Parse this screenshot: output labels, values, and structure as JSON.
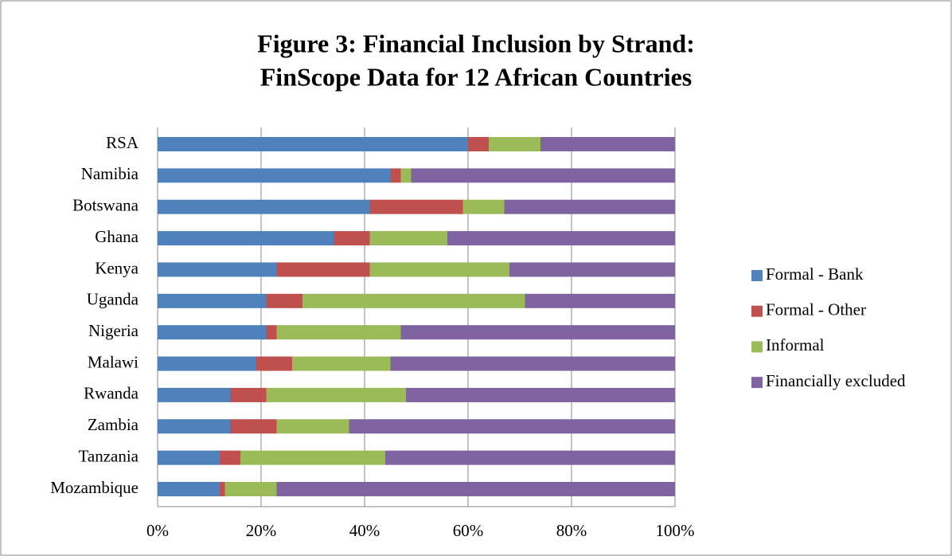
{
  "chart_data": {
    "type": "stacked-bar-horizontal",
    "title": [
      "Figure 3: Financial Inclusion by Strand:",
      "FinScope Data for 12 African Countries"
    ],
    "categories": [
      "RSA",
      "Namibia",
      "Botswana",
      "Ghana",
      "Kenya",
      "Uganda",
      "Nigeria",
      "Malawi",
      "Rwanda",
      "Zambia",
      "Tanzania",
      "Mozambique"
    ],
    "series": [
      {
        "name": "Formal - Bank",
        "color": "#4f81bd",
        "values": [
          60,
          45,
          41,
          34,
          23,
          21,
          21,
          19,
          14,
          14,
          12,
          12
        ]
      },
      {
        "name": "Formal - Other",
        "color": "#c0504d",
        "values": [
          4,
          2,
          18,
          7,
          18,
          7,
          2,
          7,
          7,
          9,
          4,
          1
        ]
      },
      {
        "name": "Informal",
        "color": "#9bbb59",
        "values": [
          10,
          2,
          8,
          15,
          27,
          43,
          24,
          19,
          27,
          14,
          28,
          10
        ]
      },
      {
        "name": "Financially excluded",
        "color": "#8064a2",
        "values": [
          26,
          51,
          33,
          44,
          32,
          29,
          53,
          55,
          52,
          63,
          56,
          77
        ]
      }
    ],
    "xlim": [
      0,
      100
    ],
    "xticks": [
      {
        "value": 0,
        "label": "0%"
      },
      {
        "value": 20,
        "label": "20%"
      },
      {
        "value": 40,
        "label": "40%"
      },
      {
        "value": 60,
        "label": "60%"
      },
      {
        "value": 80,
        "label": "80%"
      },
      {
        "value": 100,
        "label": "100%"
      }
    ],
    "grid": true,
    "legend": "right"
  }
}
